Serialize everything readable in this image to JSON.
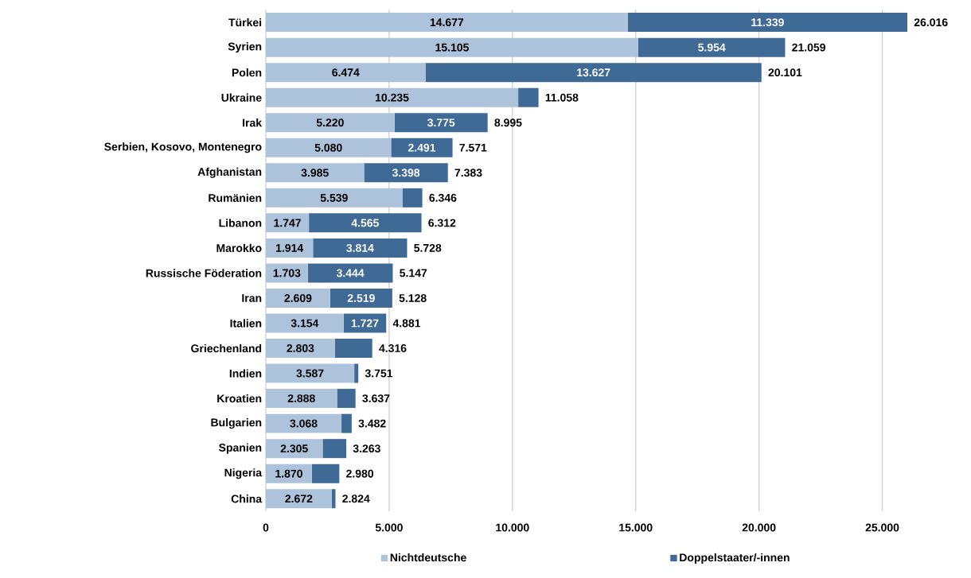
{
  "chart_data": {
    "type": "bar",
    "orientation": "horizontal",
    "stacked": true,
    "categories": [
      "Türkei",
      "Syrien",
      "Polen",
      "Ukraine",
      "Irak",
      "Serbien, Kosovo, Montenegro",
      "Afghanistan",
      "Rumänien",
      "Libanon",
      "Marokko",
      "Russische Föderation",
      "Iran",
      "Italien",
      "Griechenland",
      "Indien",
      "Kroatien",
      "Bulgarien",
      "Spanien",
      "Nigeria",
      "China"
    ],
    "series": [
      {
        "name": "Nichtdeutsche",
        "color": "#adc3dc",
        "values": [
          14677,
          15105,
          6474,
          10235,
          5220,
          5080,
          3985,
          5539,
          1747,
          1914,
          1703,
          2609,
          3154,
          2803,
          3587,
          2888,
          3068,
          2305,
          1870,
          2672
        ],
        "value_labels": [
          "14.677",
          "15.105",
          "6.474",
          "10.235",
          "5.220",
          "5.080",
          "3.985",
          "5.539",
          "1.747",
          "1.914",
          "1.703",
          "2.609",
          "3.154",
          "2.803",
          "3.587",
          "2.888",
          "3.068",
          "2.305",
          "1.870",
          "2.672"
        ]
      },
      {
        "name": "Doppelstaater/-innen",
        "color": "#3e6a95",
        "values": [
          11339,
          5954,
          13627,
          823,
          3775,
          2491,
          3398,
          807,
          4565,
          3814,
          3444,
          2519,
          1727,
          1513,
          164,
          749,
          414,
          958,
          1110,
          152
        ],
        "value_labels": [
          "11.339",
          "5.954",
          "13.627",
          null,
          "3.775",
          "2.491",
          "3.398",
          null,
          "4.565",
          "3.814",
          "3.444",
          "2.519",
          "1.727",
          null,
          null,
          null,
          null,
          null,
          null,
          null
        ]
      }
    ],
    "totals": [
      "26.016",
      "21.059",
      "20.101",
      "11.058",
      "8.995",
      "7.571",
      "7.383",
      "6.346",
      "6.312",
      "5.728",
      "5.147",
      "5.128",
      "4.881",
      "4.316",
      "3.751",
      "3.637",
      "3.482",
      "3.263",
      "2.980",
      "2.824"
    ],
    "xlim": [
      0,
      26016
    ],
    "xticks": [
      0,
      {
        "value": 5000,
        "label": "5.000"
      },
      {
        "value": 10000,
        "label": "10.000"
      },
      {
        "value": 15000,
        "label": "15.000"
      },
      {
        "value": 20000,
        "label": "20.000"
      },
      {
        "value": 25000,
        "label": "25.000"
      }
    ],
    "grid": "x",
    "legend": "bottom"
  }
}
